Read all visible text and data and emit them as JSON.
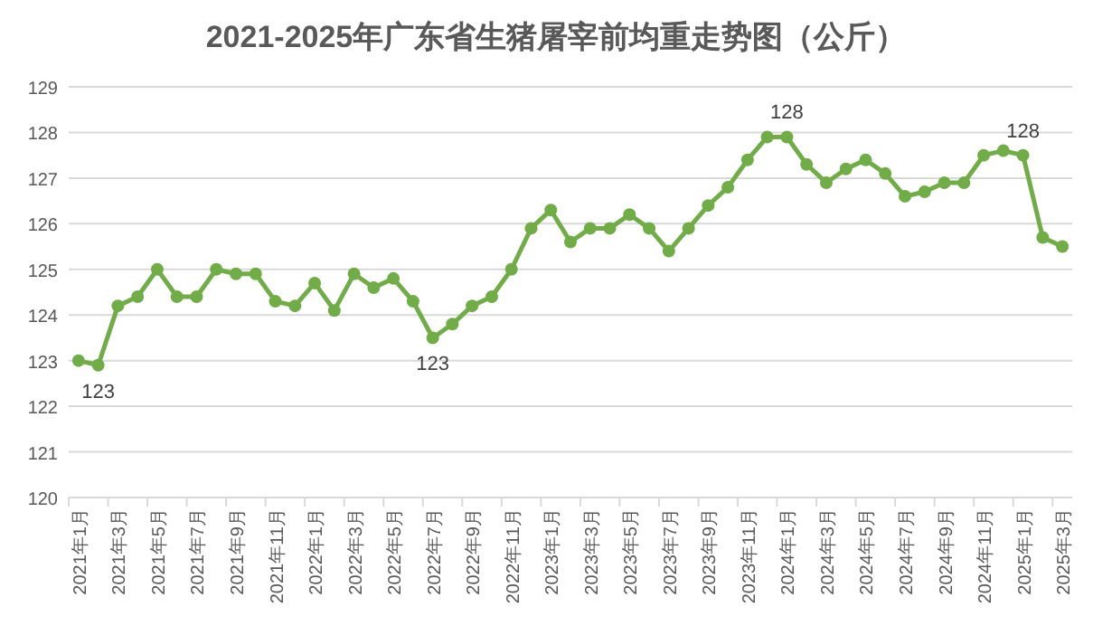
{
  "chart_data": {
    "type": "line",
    "title": "2021-2025年广东省生猪屠宰前均重走势图（公斤）",
    "categories": [
      "2021年1月",
      null,
      "2021年3月",
      null,
      "2021年5月",
      null,
      "2021年7月",
      null,
      "2021年9月",
      null,
      "2021年11月",
      null,
      "2022年1月",
      null,
      "2022年3月",
      null,
      "2022年5月",
      null,
      "2022年7月",
      null,
      "2022年9月",
      null,
      "2022年11月",
      null,
      "2023年1月",
      null,
      "2023年3月",
      null,
      "2023年5月",
      null,
      "2023年7月",
      null,
      "2023年9月",
      null,
      "2023年11月",
      null,
      "2024年1月",
      null,
      "2024年3月",
      null,
      "2024年5月",
      null,
      "2024年7月",
      null,
      "2024年9月",
      null,
      "2024年11月",
      null,
      "2025年1月",
      null,
      "2025年3月"
    ],
    "series": [
      {
        "color": "#70ad47",
        "values": [
          123.0,
          122.9,
          124.2,
          124.4,
          125.0,
          124.4,
          124.4,
          125.0,
          124.9,
          124.9,
          124.3,
          124.2,
          124.7,
          124.1,
          124.9,
          124.6,
          124.8,
          124.3,
          123.5,
          123.8,
          124.2,
          124.4,
          125.0,
          125.9,
          126.3,
          125.6,
          125.9,
          125.9,
          126.2,
          125.9,
          125.4,
          125.9,
          126.4,
          126.8,
          127.4,
          127.9,
          127.9,
          127.3,
          126.9,
          127.2,
          127.4,
          127.1,
          126.6,
          126.7,
          126.9,
          126.9,
          127.5,
          127.6,
          127.5,
          125.7,
          125.5
        ],
        "value_labels": [
          null,
          "123",
          null,
          null,
          null,
          null,
          null,
          null,
          null,
          null,
          null,
          null,
          null,
          null,
          null,
          null,
          null,
          null,
          "123",
          null,
          null,
          null,
          null,
          null,
          null,
          null,
          null,
          null,
          null,
          null,
          null,
          null,
          null,
          null,
          null,
          null,
          "128",
          null,
          null,
          null,
          null,
          null,
          null,
          null,
          null,
          null,
          null,
          null,
          "128",
          null,
          null
        ]
      }
    ],
    "ylim": [
      120,
      129
    ],
    "yticks": [
      120,
      121,
      122,
      123,
      124,
      125,
      126,
      127,
      128,
      129
    ],
    "grid": "y",
    "marker": "circle",
    "line_style": "solid"
  }
}
